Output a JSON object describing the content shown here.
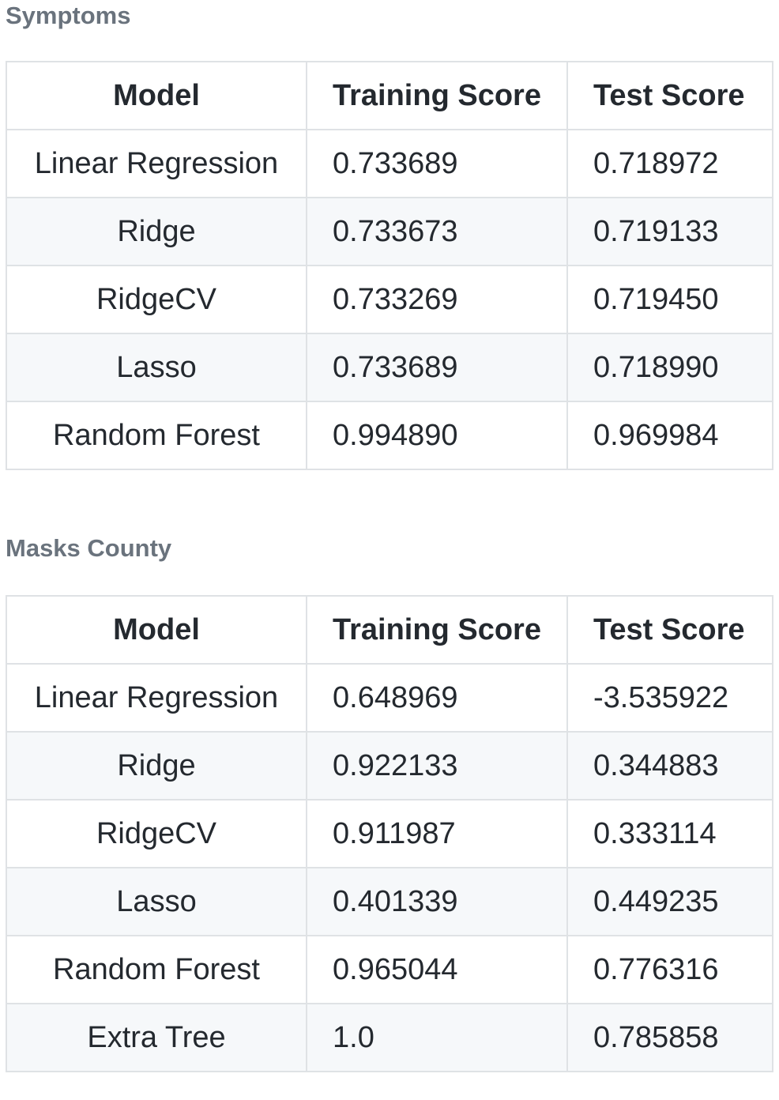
{
  "sections": [
    {
      "title": "Symptoms",
      "headers": [
        "Model",
        "Training Score",
        "Test Score"
      ],
      "rows": [
        [
          "Linear Regression",
          "0.733689",
          "0.718972"
        ],
        [
          "Ridge",
          "0.733673",
          "0.719133"
        ],
        [
          "RidgeCV",
          "0.733269",
          "0.719450"
        ],
        [
          "Lasso",
          "0.733689",
          "0.718990"
        ],
        [
          "Random Forest",
          "0.994890",
          "0.969984"
        ]
      ]
    },
    {
      "title": "Masks County",
      "headers": [
        "Model",
        "Training Score",
        "Test Score"
      ],
      "rows": [
        [
          "Linear Regression",
          "0.648969",
          "-3.535922"
        ],
        [
          "Ridge",
          "0.922133",
          "0.344883"
        ],
        [
          "RidgeCV",
          "0.911987",
          "0.333114"
        ],
        [
          "Lasso",
          "0.401339",
          "0.449235"
        ],
        [
          "Random Forest",
          "0.965044",
          "0.776316"
        ],
        [
          "Extra Tree",
          "1.0",
          "0.785858"
        ]
      ]
    }
  ]
}
